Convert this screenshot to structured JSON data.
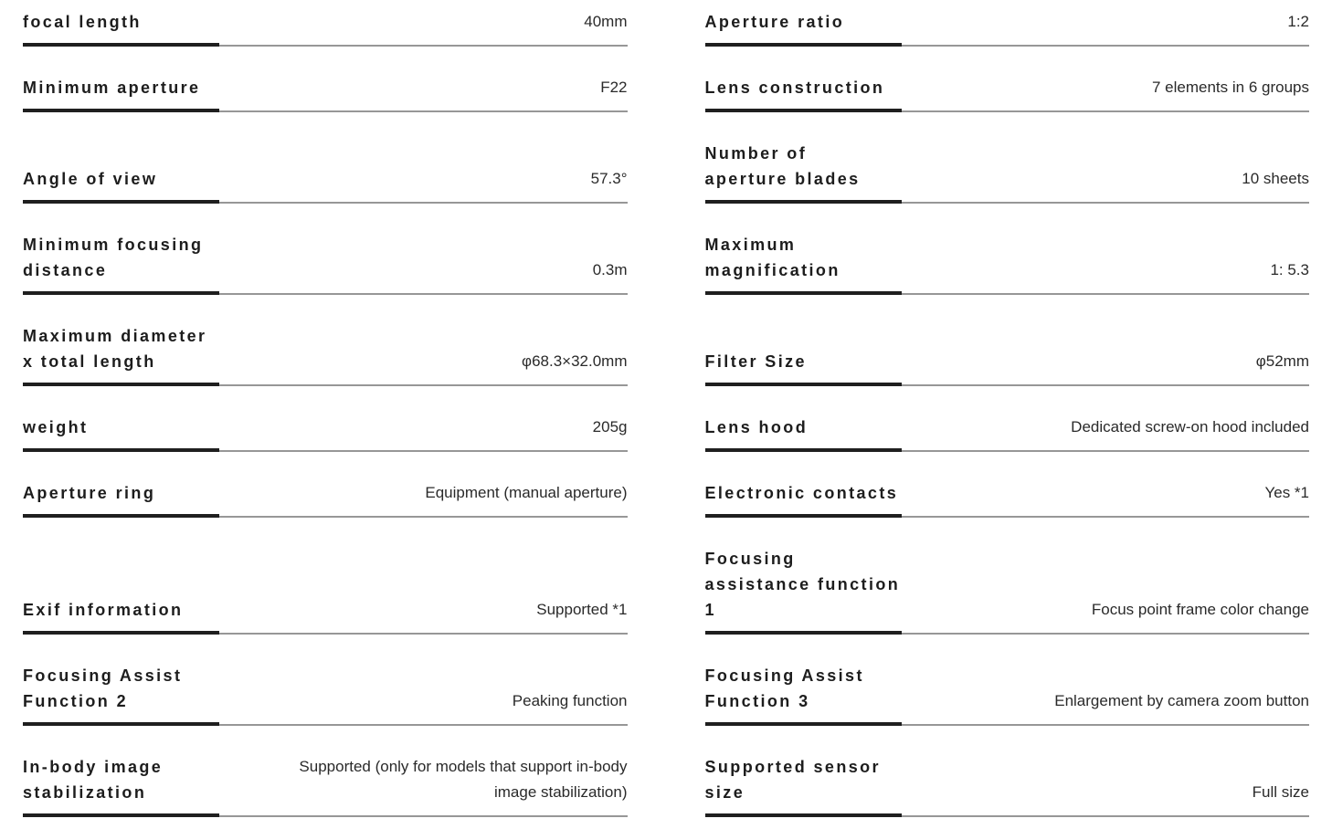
{
  "colors": {
    "background": "#ffffff",
    "label_text": "#1d1d1d",
    "value_text": "#2a2a2a",
    "label_underline": "#1f1f1f",
    "divider_line": "#979797"
  },
  "specs": {
    "left": [
      {
        "label": "focal length",
        "value": "40mm"
      },
      {
        "label": "Minimum aperture",
        "value": "F22"
      },
      {
        "label": "Angle of view",
        "value": "57.3°"
      },
      {
        "label": "Minimum focusing\ndistance",
        "value": "0.3m"
      },
      {
        "label": "Maximum diameter\nx total length",
        "value": "φ68.3×32.0mm"
      },
      {
        "label": "weight",
        "value": "205g"
      },
      {
        "label": "Aperture ring",
        "value": "Equipment (manual aperture)"
      },
      {
        "label": "Exif information",
        "value": "Supported *1"
      },
      {
        "label": "Focusing Assist\nFunction 2",
        "value": "Peaking function"
      },
      {
        "label": "In-body image\nstabilization",
        "value": "Supported (only for models that support in-body\nimage stabilization)"
      }
    ],
    "right": [
      {
        "label": "Aperture ratio",
        "value": "1:2"
      },
      {
        "label": "Lens construction",
        "value": "7 elements in 6 groups"
      },
      {
        "label": "Number of\naperture blades",
        "value": "10 sheets"
      },
      {
        "label": "Maximum\nmagnification",
        "value": "1: 5.3"
      },
      {
        "label": "Filter Size",
        "value": "φ52mm"
      },
      {
        "label": "Lens hood",
        "value": "Dedicated screw-on hood included"
      },
      {
        "label": "Electronic contacts",
        "value": "Yes *1"
      },
      {
        "label": "Focusing\nassistance function\n1",
        "value": "Focus point frame color change"
      },
      {
        "label": "Focusing Assist\nFunction 3",
        "value": "Enlargement by camera zoom button"
      },
      {
        "label": "Supported sensor\nsize",
        "value": "Full size"
      }
    ]
  }
}
